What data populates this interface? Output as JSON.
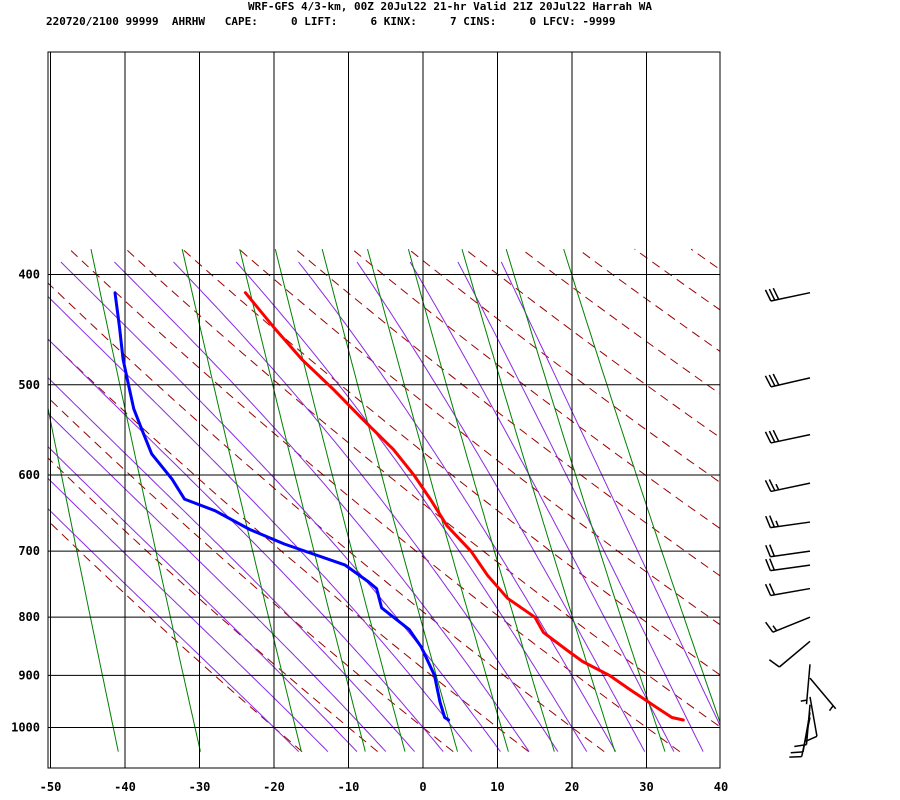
{
  "header": {
    "line1": "WRF-GFS 4/3-km, 00Z 20Jul22 21-hr Valid 21Z 20Jul22 Harrah WA",
    "line2": "220720/2100 99999  AHRHW   CAPE:     0 LIFT:     6 KINX:     7 CINS:     0 LFCV: -9999"
  },
  "chart_data": {
    "type": "line",
    "chart_kind": "skew-T log-P sounding",
    "title": "WRF-GFS 4/3-km, 00Z 20Jul22 21-hr Valid 21Z 20Jul22 Harrah WA",
    "xlabel": "",
    "ylabel": "",
    "x_ticks": [
      -50,
      -40,
      -30,
      -20,
      -10,
      0,
      10,
      20,
      30,
      40
    ],
    "y_ticks": [
      400,
      500,
      600,
      700,
      800,
      900,
      1000
    ],
    "xlim": [
      -50,
      40
    ],
    "ylim": [
      1040,
      400
    ],
    "y_scale": "log",
    "grid": true,
    "series": [
      {
        "color": "#ff0000",
        "points": [
          [
            35,
            985
          ],
          [
            33.5,
            980
          ],
          [
            31.5,
            960
          ],
          [
            28,
            925
          ],
          [
            25.5,
            900
          ],
          [
            22,
            875
          ],
          [
            20,
            855
          ],
          [
            17,
            825
          ],
          [
            16,
            800
          ],
          [
            12.5,
            770
          ],
          [
            10,
            735
          ],
          [
            8,
            700
          ],
          [
            5,
            665
          ],
          [
            3,
            630
          ],
          [
            1,
            600
          ],
          [
            -1.5,
            570
          ],
          [
            -5.5,
            535
          ],
          [
            -9,
            505
          ],
          [
            -13,
            475
          ],
          [
            -16.5,
            445
          ],
          [
            -20,
            415
          ]
        ]
      },
      {
        "color": "#0000ff",
        "points": [
          [
            3.5,
            985
          ],
          [
            3,
            980
          ],
          [
            2.5,
            950
          ],
          [
            2,
            900
          ],
          [
            0.5,
            850
          ],
          [
            -1,
            820
          ],
          [
            -3.5,
            795
          ],
          [
            -4.5,
            785
          ],
          [
            -5,
            755
          ],
          [
            -6,
            745
          ],
          [
            -9,
            720
          ],
          [
            -17,
            690
          ],
          [
            -21.5,
            670
          ],
          [
            -26,
            645
          ],
          [
            -30,
            630
          ],
          [
            -31.5,
            605
          ],
          [
            -34,
            575
          ],
          [
            -35,
            550
          ],
          [
            -36,
            525
          ],
          [
            -36.5,
            500
          ],
          [
            -37,
            475
          ],
          [
            -37.2,
            445
          ],
          [
            -37.5,
            415
          ]
        ]
      }
    ],
    "wind_barbs": [
      {
        "p": 415,
        "dir": 258,
        "spd": 32
      },
      {
        "p": 493,
        "dir": 257,
        "spd": 30
      },
      {
        "p": 553,
        "dir": 258,
        "spd": 30
      },
      {
        "p": 610,
        "dir": 258,
        "spd": 27
      },
      {
        "p": 660,
        "dir": 262,
        "spd": 24
      },
      {
        "p": 700,
        "dir": 262,
        "spd": 22
      },
      {
        "p": 720,
        "dir": 262,
        "spd": 22
      },
      {
        "p": 755,
        "dir": 260,
        "spd": 20
      },
      {
        "p": 800,
        "dir": 248,
        "spd": 15
      },
      {
        "p": 840,
        "dir": 230,
        "spd": 8
      },
      {
        "p": 880,
        "dir": 185,
        "spd": 7
      },
      {
        "p": 905,
        "dir": 140,
        "spd": 7
      },
      {
        "p": 940,
        "dir": 170,
        "spd": 10
      },
      {
        "p": 955,
        "dir": 185,
        "spd": 10
      },
      {
        "p": 970,
        "dir": 190,
        "spd": 10
      },
      {
        "p": 980,
        "dir": 192,
        "spd": 10
      }
    ],
    "grid_colors": {
      "isotherm": "#000000",
      "dry_adiabat": "#9b0000",
      "moist_adiabat": "#8a2be2",
      "mixing_ratio": "#008000"
    }
  }
}
